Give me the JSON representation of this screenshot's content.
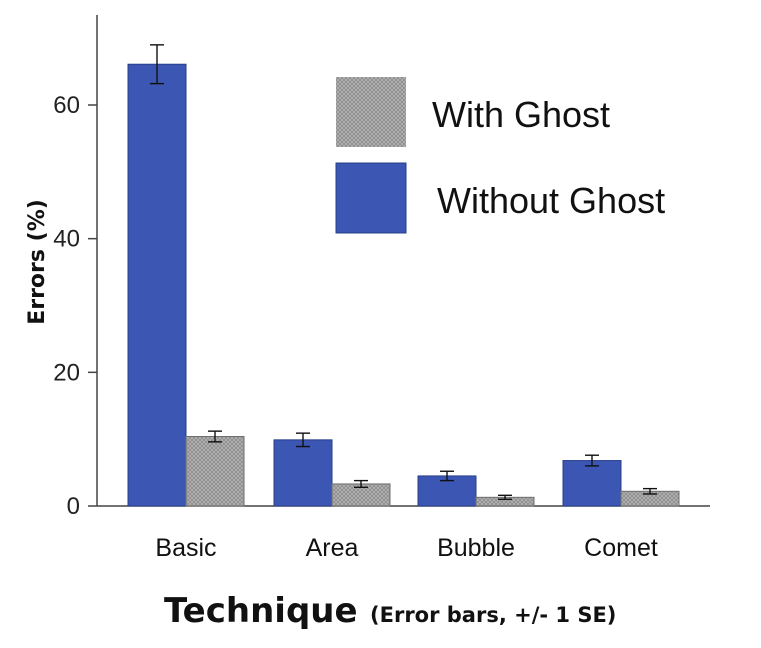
{
  "chart_data": {
    "type": "bar",
    "xlabel": "Technique",
    "xlabel_note": "(Error bars, +/- 1 SE)",
    "ylabel": "Errors (%)",
    "ylim": [
      0,
      70
    ],
    "yticks": [
      "0",
      "20",
      "40",
      "60"
    ],
    "categories": [
      "Basic",
      "Area",
      "Bubble",
      "Comet"
    ],
    "series": [
      {
        "name": "Without Ghost",
        "color": "#3b56b3",
        "values": [
          66.1,
          9.9,
          4.5,
          6.8
        ],
        "se": [
          2.9,
          1.0,
          0.7,
          0.8
        ]
      },
      {
        "name": "With Ghost",
        "color": "#a8a8a8",
        "pattern": "crosshatch",
        "values": [
          10.4,
          3.3,
          1.3,
          2.2
        ],
        "se": [
          0.8,
          0.5,
          0.3,
          0.4
        ]
      }
    ],
    "legend": {
      "position": "top-right",
      "order": [
        "With Ghost",
        "Without Ghost"
      ]
    },
    "grid": false
  }
}
